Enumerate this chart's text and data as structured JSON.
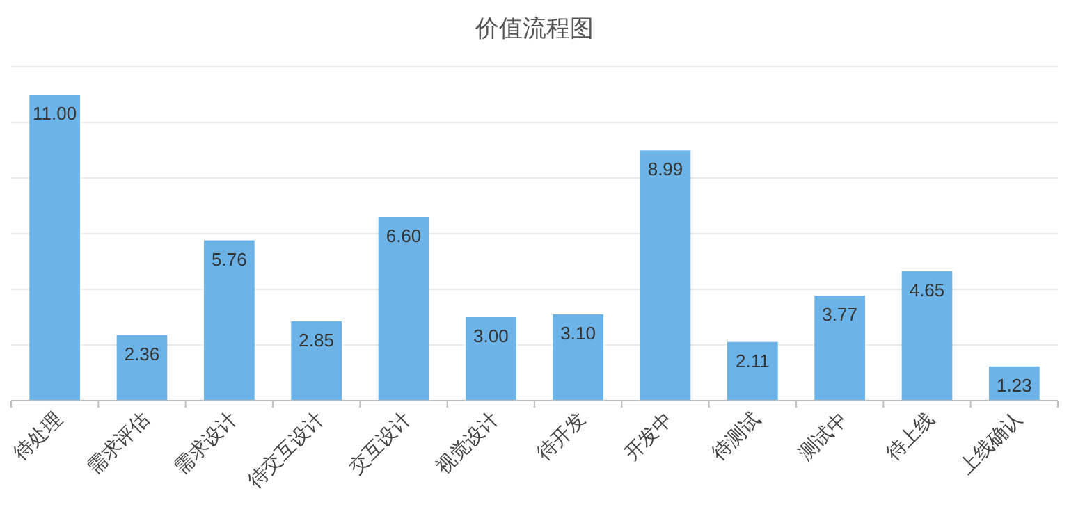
{
  "chart_data": {
    "type": "bar",
    "title": "价值流程图",
    "categories": [
      "待处理",
      "需求评估",
      "需求设计",
      "待交互设计",
      "交互设计",
      "视觉设计",
      "待开发",
      "开发中",
      "待测试",
      "测试中",
      "待上线",
      "上线确认"
    ],
    "values": [
      11.0,
      2.36,
      5.76,
      2.85,
      6.6,
      3.0,
      3.1,
      8.99,
      2.11,
      3.77,
      4.65,
      1.23
    ],
    "color": "#6cb4e8",
    "ylim": [
      0,
      12
    ],
    "yticks": [
      {
        "value": 0,
        "label": null
      },
      {
        "value": 2,
        "label": null
      },
      {
        "value": 4,
        "label": null
      },
      {
        "value": 6,
        "label": null
      },
      {
        "value": 8,
        "label": null
      },
      {
        "value": 10,
        "label": null
      },
      {
        "value": 12,
        "label": null
      }
    ],
    "value_labels": [
      "11.00",
      "2.36",
      "5.76",
      "2.85",
      "6.60",
      "3.00",
      "3.10",
      "8.99",
      "2.11",
      "3.77",
      "4.65",
      "1.23"
    ],
    "grid": "y"
  }
}
